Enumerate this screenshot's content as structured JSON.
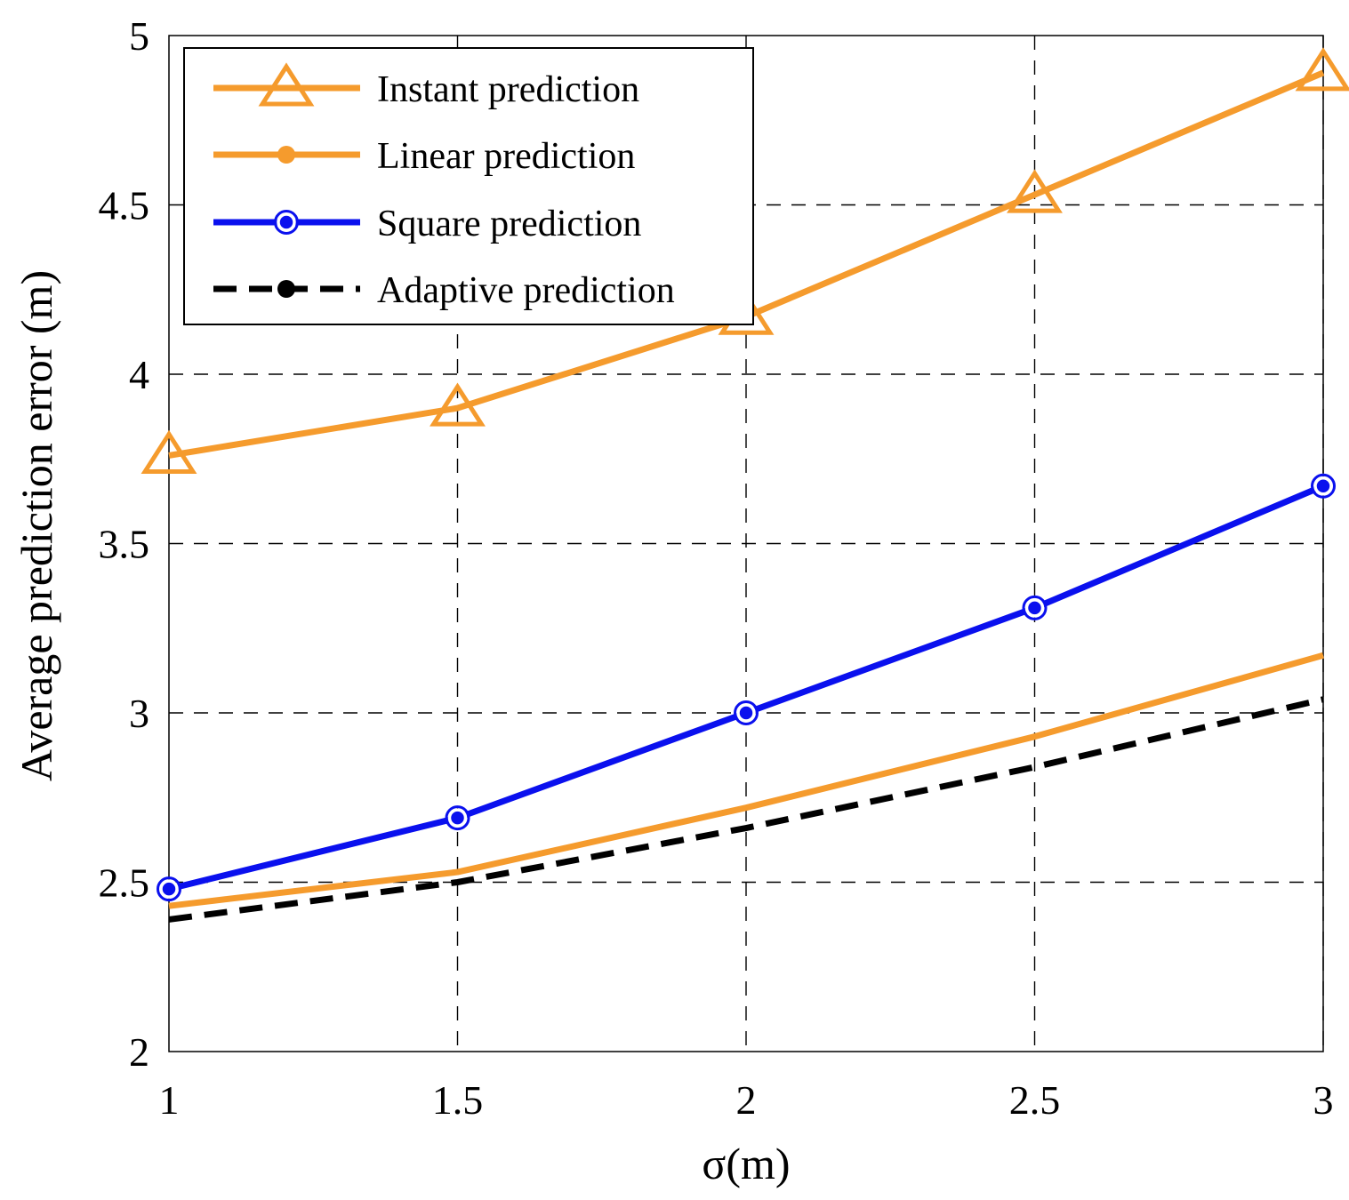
{
  "chart_data": {
    "type": "line",
    "title": "",
    "xlabel": "σ(m)",
    "ylabel": "Average prediction error (m)",
    "x": [
      1,
      1.5,
      2,
      2.5,
      3
    ],
    "xlim": [
      1,
      3
    ],
    "ylim": [
      2,
      5
    ],
    "xticks": [
      1,
      1.5,
      2,
      2.5,
      3
    ],
    "xtick_labels": [
      "1",
      "1.5",
      "2",
      "2.5",
      "3"
    ],
    "yticks": [
      2,
      2.5,
      3,
      3.5,
      4,
      4.5,
      5
    ],
    "ytick_labels": [
      "2",
      "2.5",
      "3",
      "3.5",
      "4",
      "4.5",
      "5"
    ],
    "grid": true,
    "legend_position": "top-left",
    "series": [
      {
        "name": "Instant prediction",
        "values": [
          3.76,
          3.9,
          4.17,
          4.53,
          4.89
        ],
        "color": "#f59b2d",
        "marker": "triangle",
        "line_style": "solid"
      },
      {
        "name": "Linear prediction",
        "values": [
          2.43,
          2.53,
          2.72,
          2.93,
          3.17
        ],
        "color": "#f59b2d",
        "marker": "dot",
        "line_style": "solid"
      },
      {
        "name": "Square prediction",
        "values": [
          2.48,
          2.69,
          3.0,
          3.31,
          3.67
        ],
        "color": "#0a10ee",
        "marker": "circle",
        "line_style": "solid"
      },
      {
        "name": "Adaptive prediction",
        "values": [
          2.39,
          2.5,
          2.66,
          2.84,
          3.04
        ],
        "color": "#000000",
        "marker": "dot",
        "line_style": "dashed"
      }
    ]
  }
}
